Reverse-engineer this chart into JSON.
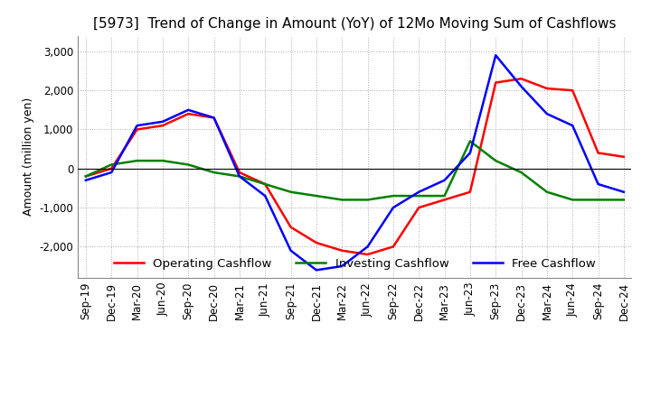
{
  "title": "[5973]  Trend of Change in Amount (YoY) of 12Mo Moving Sum of Cashflows",
  "ylabel": "Amount (million yen)",
  "x_labels": [
    "Sep-19",
    "Dec-19",
    "Mar-20",
    "Jun-20",
    "Sep-20",
    "Dec-20",
    "Mar-21",
    "Jun-21",
    "Sep-21",
    "Dec-21",
    "Mar-22",
    "Jun-22",
    "Sep-22",
    "Dec-22",
    "Mar-23",
    "Jun-23",
    "Sep-23",
    "Dec-23",
    "Mar-24",
    "Jun-24",
    "Sep-24",
    "Dec-24"
  ],
  "operating": [
    -200,
    0,
    1000,
    1100,
    1400,
    1300,
    -100,
    -400,
    -1500,
    -1900,
    -2100,
    -2200,
    -2000,
    -1000,
    -800,
    -600,
    2200,
    2300,
    2050,
    2000,
    400,
    300
  ],
  "investing": [
    -200,
    100,
    200,
    200,
    100,
    -100,
    -200,
    -400,
    -600,
    -700,
    -800,
    -800,
    -700,
    -700,
    -700,
    700,
    200,
    -100,
    -600,
    -800,
    -800,
    -800
  ],
  "free": [
    -300,
    -100,
    1100,
    1200,
    1500,
    1300,
    -200,
    -700,
    -2100,
    -2600,
    -2500,
    -2000,
    -1000,
    -600,
    -300,
    400,
    2900,
    2100,
    1400,
    1100,
    -400,
    -600
  ],
  "ylim": [
    -2800,
    3400
  ],
  "yticks": [
    -2000,
    -1000,
    0,
    1000,
    2000,
    3000
  ],
  "colors": {
    "operating": "#FF0000",
    "investing": "#008000",
    "free": "#0000FF"
  },
  "legend_labels": [
    "Operating Cashflow",
    "Investing Cashflow",
    "Free Cashflow"
  ],
  "title_fontsize": 11,
  "axis_fontsize": 9,
  "tick_fontsize": 8.5
}
